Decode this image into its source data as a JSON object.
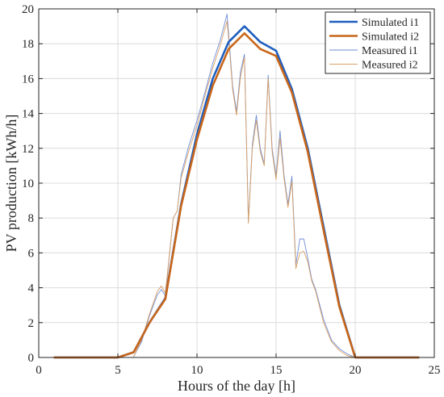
{
  "chart_data": {
    "type": "line",
    "xlabel": "Hours of the day [h]",
    "ylabel": "PV production [kWh/h]",
    "xlim": [
      0,
      25
    ],
    "ylim": [
      0,
      20
    ],
    "xticks": [
      "0",
      "5",
      "10",
      "15",
      "20",
      "25"
    ],
    "yticks": [
      "0",
      "2",
      "4",
      "6",
      "8",
      "10",
      "12",
      "14",
      "16",
      "18",
      "20"
    ],
    "grid": true,
    "legend_position": "top-right",
    "series": [
      {
        "name": "Simulated i1",
        "color": "#1f5fbf",
        "width": "thick",
        "x": [
          1,
          2,
          3,
          4,
          5,
          6,
          7,
          8,
          9,
          10,
          11,
          12,
          13,
          14,
          15,
          16,
          17,
          18,
          19,
          20,
          21,
          22,
          23,
          24
        ],
        "y": [
          0,
          0,
          0,
          0,
          0,
          0.3,
          2.0,
          3.4,
          8.8,
          12.8,
          16.0,
          18.1,
          19.0,
          18.1,
          17.6,
          15.4,
          12.0,
          7.5,
          3.0,
          0,
          0,
          0,
          0,
          0
        ]
      },
      {
        "name": "Simulated i2",
        "color": "#c8661a",
        "width": "thick",
        "x": [
          1,
          2,
          3,
          4,
          5,
          6,
          7,
          8,
          9,
          10,
          11,
          12,
          13,
          14,
          15,
          16,
          17,
          18,
          19,
          20,
          21,
          22,
          23,
          24
        ],
        "y": [
          0,
          0,
          0,
          0,
          0,
          0.3,
          2.0,
          3.35,
          8.7,
          12.5,
          15.6,
          17.7,
          18.6,
          17.7,
          17.3,
          15.2,
          11.8,
          7.3,
          2.9,
          0,
          0,
          0,
          0,
          0
        ]
      },
      {
        "name": "Measured i1",
        "color": "#6f8fd6",
        "width": "thin",
        "x": [
          6.0,
          6.5,
          7.0,
          7.5,
          7.75,
          8.0,
          8.5,
          8.75,
          9.0,
          9.5,
          10.0,
          10.5,
          11.0,
          11.5,
          11.9,
          12.0,
          12.25,
          12.5,
          12.75,
          13.0,
          13.25,
          13.5,
          13.75,
          14.0,
          14.25,
          14.5,
          14.75,
          15.0,
          15.25,
          15.5,
          15.75,
          16.0,
          16.25,
          16.5,
          16.75,
          17.0,
          17.25,
          17.5,
          18.0,
          18.5,
          19.0,
          19.5,
          20.0
        ],
        "y": [
          0.05,
          0.9,
          2.4,
          3.6,
          3.9,
          3.55,
          8.0,
          8.4,
          10.5,
          12.2,
          13.6,
          15.2,
          16.9,
          18.3,
          19.7,
          18.6,
          15.6,
          14.1,
          16.4,
          17.4,
          7.8,
          12.2,
          13.9,
          12.0,
          11.1,
          16.2,
          12.0,
          10.4,
          13.0,
          10.5,
          8.8,
          10.4,
          5.3,
          6.8,
          6.8,
          5.7,
          4.5,
          3.9,
          2.2,
          1.0,
          0.5,
          0.2,
          0.0
        ]
      },
      {
        "name": "Measured i2",
        "color": "#d9a066",
        "width": "thin",
        "x": [
          6.0,
          6.5,
          7.0,
          7.5,
          7.75,
          8.0,
          8.5,
          8.75,
          9.0,
          9.5,
          10.0,
          10.5,
          11.0,
          11.5,
          11.9,
          12.0,
          12.25,
          12.5,
          12.75,
          13.0,
          13.25,
          13.5,
          13.75,
          14.0,
          14.25,
          14.5,
          14.75,
          15.0,
          15.25,
          15.5,
          15.75,
          16.0,
          16.25,
          16.5,
          16.75,
          17.0,
          17.25,
          17.5,
          18.0,
          18.5,
          19.0,
          19.5,
          20.0
        ],
        "y": [
          0.05,
          1.0,
          2.5,
          3.8,
          4.1,
          3.7,
          8.0,
          8.4,
          10.3,
          11.9,
          13.3,
          15.0,
          16.6,
          18.0,
          19.3,
          18.3,
          15.4,
          13.9,
          16.1,
          17.2,
          7.7,
          12.0,
          13.6,
          11.8,
          11.0,
          16.0,
          11.8,
          10.2,
          12.6,
          10.3,
          8.6,
          10.1,
          5.1,
          6.0,
          6.1,
          5.5,
          4.4,
          3.8,
          2.0,
          0.9,
          0.4,
          0.1,
          0.0
        ]
      }
    ]
  }
}
